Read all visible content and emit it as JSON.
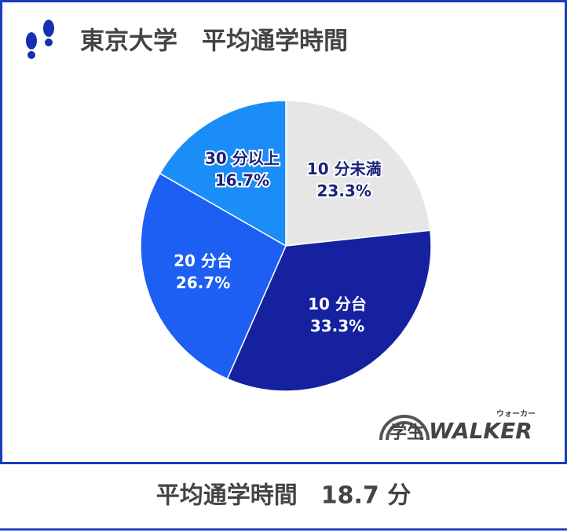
{
  "chart_data": {
    "type": "pie",
    "title": "東京大学　平均通学時間",
    "categories": [
      "10 分未満",
      "10 分台",
      "20 分台",
      "30 分以上"
    ],
    "values": [
      23.3,
      33.3,
      26.7,
      16.7
    ],
    "value_labels": [
      "23.3%",
      "33.3%",
      "26.7%",
      "16.7%"
    ],
    "colors": [
      "#e6e6e6",
      "#1621a0",
      "#1c5ff2",
      "#1a8ef6"
    ]
  },
  "logo": {
    "parts": [
      "学生",
      "WALKER",
      "ウォーカー"
    ]
  },
  "footer": {
    "text": "平均通学時間　18.7 分"
  }
}
